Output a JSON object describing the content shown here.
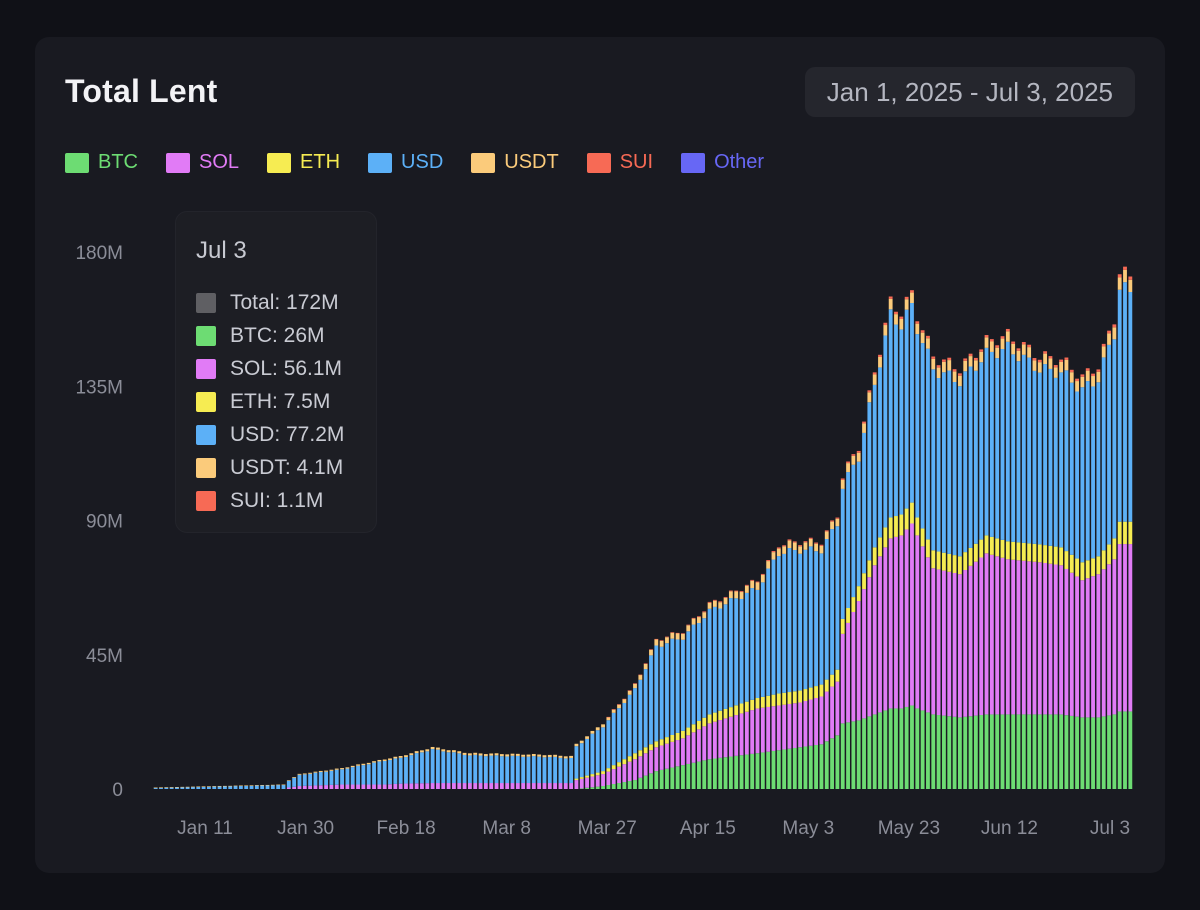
{
  "title": "Total Lent",
  "date_range": "Jan 1, 2025 - Jul 3, 2025",
  "legend": [
    {
      "label": "BTC",
      "color": "#6ddc73"
    },
    {
      "label": "SOL",
      "color": "#e17bf6"
    },
    {
      "label": "ETH",
      "color": "#f6ec52"
    },
    {
      "label": "USD",
      "color": "#5cb0f7"
    },
    {
      "label": "USDT",
      "color": "#fbcb7b"
    },
    {
      "label": "SUI",
      "color": "#f76a55"
    },
    {
      "label": "Other",
      "color": "#6767f5"
    }
  ],
  "tooltip": {
    "date": "Jul 3",
    "rows": [
      {
        "text": "Total: 172M",
        "color": "#5f5f63"
      },
      {
        "text": "BTC: 26M",
        "color": "#6ddc73"
      },
      {
        "text": "SOL: 56.1M",
        "color": "#e17bf6"
      },
      {
        "text": "ETH: 7.5M",
        "color": "#f6ec52"
      },
      {
        "text": "USD: 77.2M",
        "color": "#5cb0f7"
      },
      {
        "text": "USDT: 4.1M",
        "color": "#fbcb7b"
      },
      {
        "text": "SUI: 1.1M",
        "color": "#f76a55"
      }
    ]
  },
  "chart_data": {
    "type": "bar",
    "stacked": true,
    "unit": "M",
    "ylim": [
      0,
      180
    ],
    "yticks": [
      0,
      45,
      90,
      135,
      180
    ],
    "ytick_labels": [
      "0",
      "45M",
      "90M",
      "135M",
      "180M"
    ],
    "xtick_labels": [
      "Jan 11",
      "Jan 30",
      "Feb 18",
      "Mar 8",
      "Mar 27",
      "Apr 15",
      "May 3",
      "May 23",
      "Jun 12",
      "Jul 3"
    ],
    "grid": false,
    "legend_position": "top-left",
    "start_date": "2025-01-01",
    "end_date": "2025-07-03",
    "keyframes": [
      {
        "date": "2025-01-01",
        "total": 0.5,
        "btc": 0,
        "sol": 0,
        "eth": 0,
        "usdt": 0.05,
        "sui": 0
      },
      {
        "date": "2025-01-25",
        "total": 1.5,
        "btc": 0,
        "sol": 0,
        "eth": 0,
        "usdt": 0.1,
        "sui": 0
      },
      {
        "date": "2025-01-26",
        "total": 3,
        "btc": 0,
        "sol": 0.5,
        "eth": 0,
        "usdt": 0.2,
        "sui": 0
      },
      {
        "date": "2025-01-28",
        "total": 5,
        "btc": 0,
        "sol": 1,
        "eth": 0,
        "usdt": 0.3,
        "sui": 0
      },
      {
        "date": "2025-02-05",
        "total": 7,
        "btc": 0,
        "sol": 1.5,
        "eth": 0,
        "usdt": 0.4,
        "sui": 0
      },
      {
        "date": "2025-02-13",
        "total": 10,
        "btc": 0,
        "sol": 1.5,
        "eth": 0,
        "usdt": 0.5,
        "sui": 0
      },
      {
        "date": "2025-02-16",
        "total": 11,
        "btc": 0,
        "sol": 1.8,
        "eth": 0,
        "usdt": 0.6,
        "sui": 0
      },
      {
        "date": "2025-02-22",
        "total": 14,
        "btc": 0,
        "sol": 2,
        "eth": 0,
        "usdt": 0.7,
        "sui": 0
      },
      {
        "date": "2025-03-01",
        "total": 12,
        "btc": 0,
        "sol": 2,
        "eth": 0,
        "usdt": 0.7,
        "sui": 0
      },
      {
        "date": "2025-03-15",
        "total": 11.5,
        "btc": 0,
        "sol": 2,
        "eth": 0,
        "usdt": 0.7,
        "sui": 0
      },
      {
        "date": "2025-03-20",
        "total": 11,
        "btc": 0,
        "sol": 2,
        "eth": 0,
        "usdt": 0.7,
        "sui": 0
      },
      {
        "date": "2025-03-21",
        "total": 15,
        "btc": 0,
        "sol": 3,
        "eth": 0.5,
        "usdt": 0.8,
        "sui": 0
      },
      {
        "date": "2025-03-26",
        "total": 22,
        "btc": 1,
        "sol": 4,
        "eth": 1,
        "usdt": 1,
        "sui": 0
      },
      {
        "date": "2025-04-01",
        "total": 35,
        "btc": 3,
        "sol": 7,
        "eth": 2,
        "usdt": 1.5,
        "sui": 0.1
      },
      {
        "date": "2025-04-05",
        "total": 50,
        "btc": 6,
        "sol": 8,
        "eth": 2,
        "usdt": 2,
        "sui": 0.2
      },
      {
        "date": "2025-04-10",
        "total": 53,
        "btc": 8,
        "sol": 9,
        "eth": 2.5,
        "usdt": 2,
        "sui": 0.2
      },
      {
        "date": "2025-04-15",
        "total": 62,
        "btc": 10,
        "sol": 12,
        "eth": 3,
        "usdt": 2,
        "sui": 0.3
      },
      {
        "date": "2025-04-24",
        "total": 70,
        "btc": 12,
        "sol": 15,
        "eth": 3.5,
        "usdt": 2.5,
        "sui": 0.3
      },
      {
        "date": "2025-04-28",
        "total": 82,
        "btc": 13,
        "sol": 15,
        "eth": 4,
        "usdt": 2.5,
        "sui": 0.4
      },
      {
        "date": "2025-05-02",
        "total": 83,
        "btc": 14,
        "sol": 15,
        "eth": 4,
        "usdt": 2.5,
        "sui": 0.4
      },
      {
        "date": "2025-05-06",
        "total": 83,
        "btc": 15,
        "sol": 16,
        "eth": 4,
        "usdt": 2.5,
        "sui": 0.4
      },
      {
        "date": "2025-05-09",
        "total": 92,
        "btc": 18,
        "sol": 18,
        "eth": 4,
        "usdt": 2.5,
        "sui": 0.4
      },
      {
        "date": "2025-05-10",
        "total": 105,
        "btc": 22,
        "sol": 30,
        "eth": 5,
        "usdt": 3,
        "sui": 0.5
      },
      {
        "date": "2025-05-13",
        "total": 115,
        "btc": 23,
        "sol": 40,
        "eth": 5,
        "usdt": 3,
        "sui": 0.6
      },
      {
        "date": "2025-05-16",
        "total": 140,
        "btc": 25,
        "sol": 50,
        "eth": 6,
        "usdt": 3.5,
        "sui": 0.7
      },
      {
        "date": "2025-05-19",
        "total": 163,
        "btc": 27,
        "sol": 57,
        "eth": 7,
        "usdt": 3.5,
        "sui": 0.8
      },
      {
        "date": "2025-05-21",
        "total": 160,
        "btc": 27,
        "sol": 58,
        "eth": 7,
        "usdt": 3.5,
        "sui": 0.8
      },
      {
        "date": "2025-05-23",
        "total": 166,
        "btc": 28,
        "sol": 61,
        "eth": 7,
        "usdt": 3.5,
        "sui": 0.8
      },
      {
        "date": "2025-05-24",
        "total": 159,
        "btc": 27,
        "sol": 58,
        "eth": 6,
        "usdt": 3.5,
        "sui": 0.8
      },
      {
        "date": "2025-05-27",
        "total": 145,
        "btc": 25,
        "sol": 49,
        "eth": 6,
        "usdt": 3.5,
        "sui": 0.8
      },
      {
        "date": "2025-06-01",
        "total": 141,
        "btc": 24,
        "sol": 48,
        "eth": 6,
        "usdt": 3.5,
        "sui": 0.8
      },
      {
        "date": "2025-06-06",
        "total": 150,
        "btc": 25,
        "sol": 54,
        "eth": 6,
        "usdt": 3.5,
        "sui": 0.8
      },
      {
        "date": "2025-06-10",
        "total": 152,
        "btc": 25,
        "sol": 52,
        "eth": 6,
        "usdt": 3.5,
        "sui": 0.8
      },
      {
        "date": "2025-06-16",
        "total": 145,
        "btc": 25,
        "sol": 51,
        "eth": 6,
        "usdt": 3.5,
        "sui": 0.8
      },
      {
        "date": "2025-06-20",
        "total": 144,
        "btc": 25,
        "sol": 50,
        "eth": 6,
        "usdt": 3.5,
        "sui": 0.8
      },
      {
        "date": "2025-06-24",
        "total": 138,
        "btc": 24,
        "sol": 46,
        "eth": 6,
        "usdt": 3.5,
        "sui": 0.8
      },
      {
        "date": "2025-06-27",
        "total": 142,
        "btc": 24,
        "sol": 48,
        "eth": 6,
        "usdt": 3.5,
        "sui": 0.8
      },
      {
        "date": "2025-06-30",
        "total": 158,
        "btc": 25,
        "sol": 52,
        "eth": 7,
        "usdt": 4,
        "sui": 1
      },
      {
        "date": "2025-07-01",
        "total": 173,
        "btc": 26,
        "sol": 56.1,
        "eth": 7.5,
        "usdt": 4.1,
        "sui": 1.1
      },
      {
        "date": "2025-07-03",
        "total": 172,
        "btc": 26,
        "sol": 56.1,
        "eth": 7.5,
        "usdt": 4.1,
        "sui": 1.1
      }
    ]
  }
}
